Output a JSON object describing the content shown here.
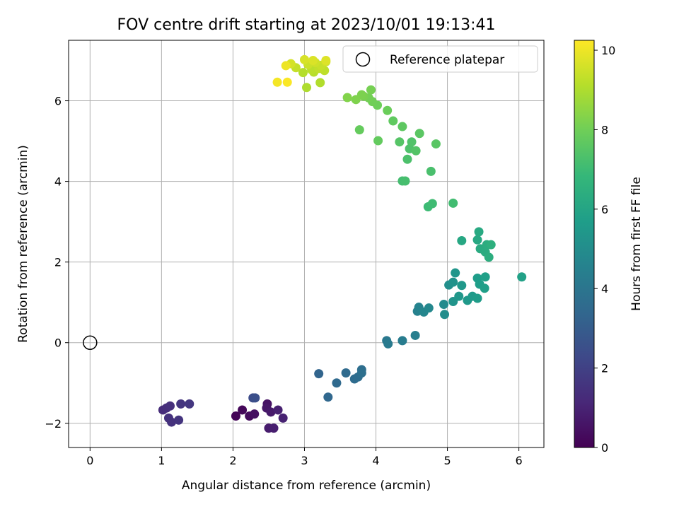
{
  "chart_data": {
    "type": "scatter",
    "title": "FOV centre drift starting at 2023/10/01 19:13:41",
    "xlabel": "Angular distance from reference (arcmin)",
    "ylabel": "Rotation from reference (arcmin)",
    "xlim": [
      -0.3,
      6.35
    ],
    "ylim": [
      -2.6,
      7.5
    ],
    "xticks": [
      0,
      1,
      2,
      3,
      4,
      5,
      6
    ],
    "yticks": [
      -2,
      0,
      2,
      4,
      6
    ],
    "grid": true,
    "legend": {
      "placement": "top-right",
      "entries": [
        "Reference platepar"
      ]
    },
    "reference_point": {
      "x": 0,
      "y": 0
    },
    "colorbar": {
      "label": "Hours from first FF file",
      "colormap": "viridis",
      "range": [
        0,
        10.25
      ],
      "ticks": [
        0,
        2,
        4,
        6,
        8,
        10
      ]
    },
    "colormap_stops": [
      "#440154",
      "#482878",
      "#3e4989",
      "#31688e",
      "#26828e",
      "#1f9e89",
      "#35b779",
      "#6ece58",
      "#b5de2b",
      "#fde725"
    ],
    "points": [
      {
        "x": 2.04,
        "y": -1.82,
        "c": 0.1
      },
      {
        "x": 2.13,
        "y": -1.67,
        "c": 0.2
      },
      {
        "x": 2.23,
        "y": -1.82,
        "c": 0.3
      },
      {
        "x": 2.3,
        "y": -1.77,
        "c": 0.4
      },
      {
        "x": 2.48,
        "y": -1.52,
        "c": 0.5
      },
      {
        "x": 2.47,
        "y": -1.62,
        "c": 0.6
      },
      {
        "x": 2.53,
        "y": -1.72,
        "c": 0.7
      },
      {
        "x": 2.5,
        "y": -2.12,
        "c": 0.8
      },
      {
        "x": 2.57,
        "y": -2.12,
        "c": 0.85
      },
      {
        "x": 2.63,
        "y": -1.67,
        "c": 0.9
      },
      {
        "x": 2.7,
        "y": -1.87,
        "c": 0.95
      },
      {
        "x": 1.02,
        "y": -1.67,
        "c": 1.3
      },
      {
        "x": 1.07,
        "y": -1.62,
        "c": 1.35
      },
      {
        "x": 1.12,
        "y": -1.57,
        "c": 1.4
      },
      {
        "x": 1.1,
        "y": -1.87,
        "c": 1.45
      },
      {
        "x": 1.14,
        "y": -1.97,
        "c": 1.5
      },
      {
        "x": 1.24,
        "y": -1.92,
        "c": 1.55
      },
      {
        "x": 1.27,
        "y": -1.52,
        "c": 1.6
      },
      {
        "x": 1.39,
        "y": -1.52,
        "c": 1.65
      },
      {
        "x": 2.28,
        "y": -1.37,
        "c": 2.4
      },
      {
        "x": 2.31,
        "y": -1.37,
        "c": 2.5
      },
      {
        "x": 3.2,
        "y": -0.77,
        "c": 3.3
      },
      {
        "x": 3.33,
        "y": -1.35,
        "c": 3.4
      },
      {
        "x": 3.45,
        "y": -1.0,
        "c": 3.5
      },
      {
        "x": 3.58,
        "y": -0.75,
        "c": 3.55
      },
      {
        "x": 3.7,
        "y": -0.9,
        "c": 3.6
      },
      {
        "x": 3.75,
        "y": -0.85,
        "c": 3.65
      },
      {
        "x": 3.8,
        "y": -0.67,
        "c": 3.7
      },
      {
        "x": 3.8,
        "y": -0.75,
        "c": 3.75
      },
      {
        "x": 4.15,
        "y": 0.05,
        "c": 4.1
      },
      {
        "x": 4.17,
        "y": -0.03,
        "c": 4.2
      },
      {
        "x": 4.37,
        "y": 0.05,
        "c": 4.3
      },
      {
        "x": 4.55,
        "y": 0.18,
        "c": 4.4
      },
      {
        "x": 4.58,
        "y": 0.78,
        "c": 4.5
      },
      {
        "x": 4.6,
        "y": 0.88,
        "c": 4.6
      },
      {
        "x": 4.67,
        "y": 0.76,
        "c": 4.7
      },
      {
        "x": 4.74,
        "y": 0.86,
        "c": 4.8
      },
      {
        "x": 4.95,
        "y": 0.95,
        "c": 4.9
      },
      {
        "x": 4.96,
        "y": 0.7,
        "c": 5.0
      },
      {
        "x": 5.02,
        "y": 1.43,
        "c": 5.1
      },
      {
        "x": 5.08,
        "y": 1.5,
        "c": 5.2
      },
      {
        "x": 5.08,
        "y": 1.02,
        "c": 5.3
      },
      {
        "x": 5.11,
        "y": 1.73,
        "c": 5.35
      },
      {
        "x": 5.16,
        "y": 1.15,
        "c": 5.4
      },
      {
        "x": 5.2,
        "y": 1.42,
        "c": 5.45
      },
      {
        "x": 5.28,
        "y": 1.05,
        "c": 5.5
      },
      {
        "x": 5.35,
        "y": 1.15,
        "c": 5.55
      },
      {
        "x": 5.42,
        "y": 1.1,
        "c": 5.6
      },
      {
        "x": 5.42,
        "y": 1.6,
        "c": 5.65
      },
      {
        "x": 5.45,
        "y": 1.45,
        "c": 5.7
      },
      {
        "x": 5.52,
        "y": 1.35,
        "c": 5.75
      },
      {
        "x": 5.53,
        "y": 1.63,
        "c": 5.8
      },
      {
        "x": 6.04,
        "y": 1.63,
        "c": 5.85
      },
      {
        "x": 5.2,
        "y": 2.53,
        "c": 6.1
      },
      {
        "x": 5.42,
        "y": 2.55,
        "c": 6.15
      },
      {
        "x": 5.44,
        "y": 2.75,
        "c": 6.2
      },
      {
        "x": 5.46,
        "y": 2.33,
        "c": 6.25
      },
      {
        "x": 5.53,
        "y": 2.25,
        "c": 6.3
      },
      {
        "x": 5.55,
        "y": 2.43,
        "c": 6.35
      },
      {
        "x": 5.58,
        "y": 2.12,
        "c": 6.4
      },
      {
        "x": 5.61,
        "y": 2.43,
        "c": 6.45
      },
      {
        "x": 4.73,
        "y": 3.37,
        "c": 7.0
      },
      {
        "x": 4.79,
        "y": 3.45,
        "c": 7.05
      },
      {
        "x": 5.08,
        "y": 3.46,
        "c": 7.1
      },
      {
        "x": 4.37,
        "y": 4.01,
        "c": 7.15
      },
      {
        "x": 4.41,
        "y": 4.01,
        "c": 7.2
      },
      {
        "x": 4.77,
        "y": 4.25,
        "c": 7.25
      },
      {
        "x": 4.44,
        "y": 4.55,
        "c": 7.3
      },
      {
        "x": 4.47,
        "y": 4.81,
        "c": 7.35
      },
      {
        "x": 4.5,
        "y": 4.98,
        "c": 7.4
      },
      {
        "x": 4.56,
        "y": 4.76,
        "c": 7.45
      },
      {
        "x": 4.33,
        "y": 4.98,
        "c": 7.5
      },
      {
        "x": 4.84,
        "y": 4.93,
        "c": 7.55
      },
      {
        "x": 4.61,
        "y": 5.19,
        "c": 7.6
      },
      {
        "x": 4.37,
        "y": 5.36,
        "c": 7.65
      },
      {
        "x": 4.24,
        "y": 5.5,
        "c": 7.7
      },
      {
        "x": 4.03,
        "y": 5.01,
        "c": 7.75
      },
      {
        "x": 3.77,
        "y": 5.28,
        "c": 7.8
      },
      {
        "x": 4.16,
        "y": 5.76,
        "c": 7.9
      },
      {
        "x": 4.02,
        "y": 5.89,
        "c": 7.95
      },
      {
        "x": 3.95,
        "y": 5.98,
        "c": 8.0
      },
      {
        "x": 3.9,
        "y": 6.07,
        "c": 8.05
      },
      {
        "x": 3.93,
        "y": 6.27,
        "c": 8.1
      },
      {
        "x": 3.83,
        "y": 6.11,
        "c": 8.15
      },
      {
        "x": 3.8,
        "y": 6.15,
        "c": 8.2
      },
      {
        "x": 3.72,
        "y": 6.03,
        "c": 8.25
      },
      {
        "x": 3.6,
        "y": 6.08,
        "c": 8.3
      },
      {
        "x": 3.03,
        "y": 6.33,
        "c": 9.0
      },
      {
        "x": 3.22,
        "y": 6.45,
        "c": 9.05
      },
      {
        "x": 2.98,
        "y": 6.7,
        "c": 9.1
      },
      {
        "x": 3.13,
        "y": 6.71,
        "c": 9.15
      },
      {
        "x": 3.1,
        "y": 6.77,
        "c": 9.2
      },
      {
        "x": 3.28,
        "y": 6.75,
        "c": 9.25
      },
      {
        "x": 3.2,
        "y": 6.8,
        "c": 9.3
      },
      {
        "x": 2.88,
        "y": 6.82,
        "c": 9.35
      },
      {
        "x": 3.23,
        "y": 6.88,
        "c": 9.4
      },
      {
        "x": 3.05,
        "y": 6.9,
        "c": 9.45
      },
      {
        "x": 3.15,
        "y": 6.95,
        "c": 9.5
      },
      {
        "x": 3.3,
        "y": 6.97,
        "c": 9.55
      },
      {
        "x": 2.81,
        "y": 6.92,
        "c": 9.6
      },
      {
        "x": 3.0,
        "y": 7.02,
        "c": 9.65
      },
      {
        "x": 3.12,
        "y": 7.0,
        "c": 9.7
      },
      {
        "x": 3.3,
        "y": 7.0,
        "c": 9.75
      },
      {
        "x": 2.74,
        "y": 6.87,
        "c": 10.0
      },
      {
        "x": 2.62,
        "y": 6.46,
        "c": 10.1
      },
      {
        "x": 2.76,
        "y": 6.46,
        "c": 10.2
      }
    ]
  }
}
